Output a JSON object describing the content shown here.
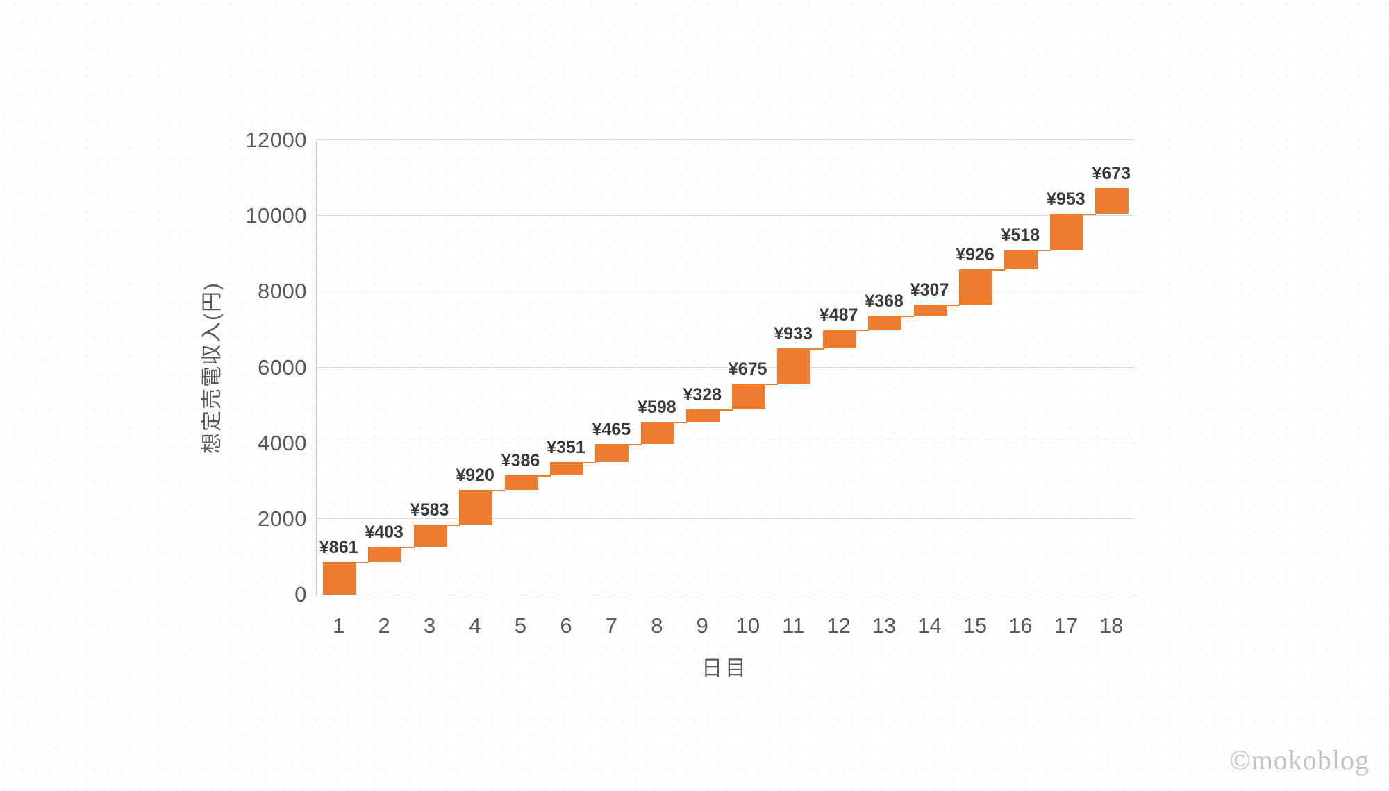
{
  "chart_data": {
    "type": "bar",
    "subtype": "waterfall",
    "title": "",
    "xlabel": "日目",
    "ylabel": "想定売電収入(円)",
    "categories": [
      "1",
      "2",
      "3",
      "4",
      "5",
      "6",
      "7",
      "8",
      "9",
      "10",
      "11",
      "12",
      "13",
      "14",
      "15",
      "16",
      "17",
      "18"
    ],
    "increments": [
      861,
      403,
      583,
      920,
      386,
      351,
      465,
      598,
      328,
      675,
      933,
      487,
      368,
      307,
      926,
      518,
      953,
      673
    ],
    "cumulative_start": [
      0,
      861,
      1264,
      1847,
      2767,
      3153,
      3504,
      3969,
      4567,
      4895,
      5570,
      6503,
      6990,
      7358,
      7665,
      8591,
      9109,
      10062
    ],
    "cumulative_end": [
      861,
      1264,
      1847,
      2767,
      3153,
      3504,
      3969,
      4567,
      4895,
      5570,
      6503,
      6990,
      7358,
      7665,
      8591,
      9109,
      10062,
      10735
    ],
    "labels": [
      "¥861",
      "¥403",
      "¥583",
      "¥920",
      "¥386",
      "¥351",
      "¥465",
      "¥598",
      "¥328",
      "¥675",
      "¥933",
      "¥487",
      "¥368",
      "¥307",
      "¥926",
      "¥518",
      "¥953",
      "¥673"
    ],
    "ylim": [
      0,
      12000
    ],
    "yticks": [
      0,
      2000,
      4000,
      6000,
      8000,
      10000,
      12000
    ],
    "grid": true,
    "legend": "none",
    "bar_color": "#ED7D31",
    "connector_color": "#ED7D31"
  },
  "colors": {
    "bar": "#ED7D31",
    "connector": "#ED7D31",
    "gridline": "#DCDCDC",
    "axis_line": "#C9C9C9",
    "tick_label": "#595959",
    "value_label": "#3B3B3B",
    "watermark": "#C3C3C3"
  },
  "watermark": {
    "text": "©mokoblog"
  }
}
